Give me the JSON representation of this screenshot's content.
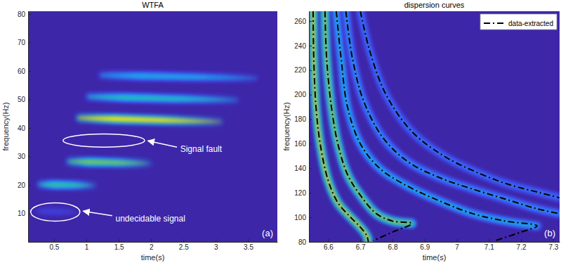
{
  "chart_data": [
    {
      "type": "heatmap",
      "title": "WTFA",
      "x_label": "time(s)",
      "y_label": "frequency(Hz)",
      "xlim": [
        0.1,
        3.95
      ],
      "xticks": [
        0.5,
        1,
        1.5,
        2,
        2.5,
        3,
        3.5
      ],
      "ylim": [
        0,
        81
      ],
      "yticks": [
        10,
        20,
        30,
        40,
        50,
        60,
        70,
        80
      ],
      "color_range": [
        0,
        1
      ],
      "ridges": [
        {
          "t_start": 0.3,
          "t_end": 1.1,
          "f_start": 20.2,
          "f_end": 19.8,
          "intensity": 0.6
        },
        {
          "t_start": 0.75,
          "t_end": 1.95,
          "f_start": 28.2,
          "f_end": 27.6,
          "intensity": 0.75
        },
        {
          "t_start": 0.9,
          "t_end": 3.05,
          "f_start": 43.5,
          "f_end": 42.2,
          "intensity": 1.0
        },
        {
          "t_start": 1.05,
          "t_end": 3.3,
          "f_start": 51.0,
          "f_end": 49.8,
          "intensity": 0.55
        },
        {
          "t_start": 1.25,
          "t_end": 3.6,
          "f_start": 58.5,
          "f_end": 57.5,
          "intensity": 0.42
        },
        {
          "t_start": 0.25,
          "t_end": 0.85,
          "f_start": 10.8,
          "f_end": 10.5,
          "intensity": 0.12
        }
      ],
      "annotations": [
        {
          "text": "Signal fault",
          "x": 2.45,
          "y": 31.5,
          "ellipse": {
            "cx": 1.27,
            "cy": 35.6,
            "rx": 0.63,
            "ry": 2.3
          },
          "arrow": {
            "from": [
              2.4,
              33.3
            ],
            "to": [
              1.95,
              35.5
            ]
          }
        },
        {
          "text": "undecidable signal",
          "x": 1.45,
          "y": 7.2,
          "ellipse": {
            "cx": 0.52,
            "cy": 10.5,
            "rx": 0.38,
            "ry": 3.2
          },
          "arrow": {
            "from": [
              1.4,
              9.2
            ],
            "to": [
              0.95,
              10.8
            ]
          }
        }
      ],
      "panel_label": "(a)"
    },
    {
      "type": "line",
      "title": "dispersion curves",
      "x_label": "time(s)",
      "y_label": "frequency(Hz)",
      "xlim": [
        6.54,
        7.32
      ],
      "xticks": [
        6.6,
        6.7,
        6.8,
        6.9,
        7,
        7.1,
        7.2,
        7.3
      ],
      "ylim": [
        80,
        268
      ],
      "yticks": [
        80,
        100,
        120,
        140,
        160,
        180,
        200,
        220,
        240,
        260
      ],
      "color_range": [
        0,
        1
      ],
      "legend": "top-right",
      "series": [
        {
          "name": "data-extracted",
          "color": "#000000",
          "line_style": "dash-dot",
          "x": [
            6.553,
            6.555,
            6.562,
            6.575,
            6.6,
            6.63,
            6.67,
            6.7,
            6.72,
            6.725,
            null,
            6.59,
            6.595,
            6.61,
            6.63,
            6.66,
            6.7,
            6.75,
            6.8,
            6.86,
            6.8,
            6.74,
            null,
            6.625,
            6.64,
            6.66,
            6.7,
            6.76,
            6.85,
            6.95,
            7.05,
            7.15,
            7.25,
            7.2,
            7.12,
            null,
            6.655,
            6.675,
            6.71,
            6.77,
            6.85,
            6.95,
            7.05,
            7.15,
            7.25,
            7.32,
            null,
            6.7,
            6.73,
            6.78,
            6.86,
            6.96,
            7.06,
            7.16,
            7.26,
            7.32
          ],
          "values": [
            268,
            230,
            190,
            160,
            130,
            112,
            100,
            92,
            85,
            80,
            null,
            268,
            230,
            190,
            160,
            135,
            118,
            103,
            97,
            95,
            88,
            81,
            null,
            268,
            230,
            190,
            160,
            140,
            125,
            113,
            103,
            97,
            93,
            88,
            81,
            null,
            268,
            230,
            195,
            165,
            145,
            132,
            123,
            115,
            107,
            103,
            null,
            268,
            235,
            200,
            170,
            150,
            137,
            127,
            120,
            116
          ]
        }
      ],
      "ridges": [
        {
          "x": [
            6.553,
            6.555,
            6.562,
            6.575,
            6.6,
            6.63,
            6.67,
            6.7,
            6.72,
            6.725
          ],
          "y": [
            268,
            230,
            190,
            160,
            130,
            112,
            100,
            92,
            85,
            80
          ],
          "intensity": 0.9
        },
        {
          "x": [
            6.59,
            6.595,
            6.61,
            6.63,
            6.66,
            6.7,
            6.75,
            6.8,
            6.86
          ],
          "y": [
            268,
            230,
            190,
            160,
            135,
            118,
            103,
            97,
            95
          ],
          "intensity": 0.8
        },
        {
          "x": [
            6.625,
            6.64,
            6.66,
            6.7,
            6.76,
            6.85,
            6.95,
            7.05,
            7.15,
            7.25
          ],
          "y": [
            268,
            230,
            190,
            160,
            140,
            125,
            113,
            103,
            97,
            93
          ],
          "intensity": 0.45
        },
        {
          "x": [
            6.655,
            6.675,
            6.71,
            6.77,
            6.85,
            6.95,
            7.05,
            7.15,
            7.25,
            7.32
          ],
          "y": [
            268,
            230,
            195,
            165,
            145,
            132,
            123,
            115,
            107,
            103
          ],
          "intensity": 0.35
        },
        {
          "x": [
            6.7,
            6.73,
            6.78,
            6.86,
            6.96,
            7.06,
            7.16,
            7.26,
            7.32
          ],
          "y": [
            268,
            235,
            200,
            170,
            150,
            137,
            127,
            120,
            116
          ],
          "intensity": 0.28
        }
      ],
      "panel_label": "(b)"
    }
  ]
}
